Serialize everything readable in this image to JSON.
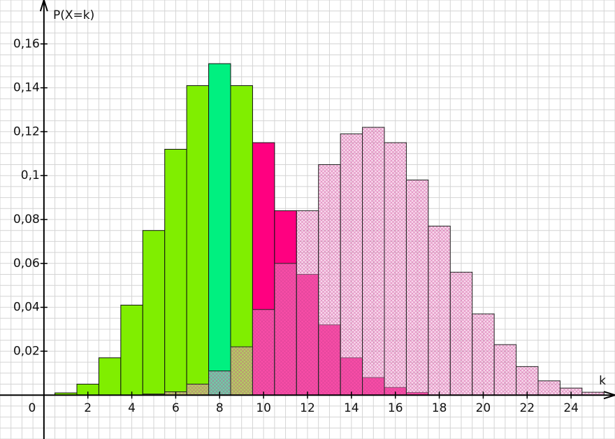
{
  "chart_data": {
    "type": "bar",
    "x_label": "k",
    "y_label": "P(X=k)",
    "xlim": [
      -2,
      26
    ],
    "ylim": [
      -0.02,
      0.18
    ],
    "xticks": [
      0,
      2,
      4,
      6,
      8,
      10,
      12,
      14,
      16,
      18,
      20,
      22,
      24
    ],
    "yticks": [
      {
        "value": 0.02,
        "label": "0,02"
      },
      {
        "value": 0.04,
        "label": "0,04"
      },
      {
        "value": 0.06,
        "label": "0,06"
      },
      {
        "value": 0.08,
        "label": "0,08"
      },
      {
        "value": 0.1,
        "label": "0,1"
      },
      {
        "value": 0.12,
        "label": "0,12"
      },
      {
        "value": 0.14,
        "label": "0,14"
      },
      {
        "value": 0.16,
        "label": "0,16"
      }
    ],
    "grid": true,
    "series": [
      {
        "x": [
          1,
          2,
          3,
          4,
          5,
          6,
          7,
          8,
          9,
          10,
          11,
          12,
          13,
          14,
          15,
          16,
          17
        ],
        "values": [
          0.001,
          0.005,
          0.017,
          0.041,
          0.075,
          0.112,
          0.141,
          0.151,
          0.141,
          0.115,
          0.084,
          0.055,
          0.032,
          0.017,
          0.008,
          0.0035,
          0.0012
        ],
        "colors": [
          "#80ee00",
          "#80ee00",
          "#80ee00",
          "#80ee00",
          "#80ee00",
          "#80ee00",
          "#80ee00",
          "#00f080",
          "#80ee00",
          "#ff0080",
          "#ff0080",
          "#ff0080",
          "#ff0080",
          "#ff0080",
          "#ff0080",
          "#ff0080",
          "#ff0080"
        ]
      },
      {
        "x": [
          5,
          6,
          7,
          8,
          9,
          10,
          11,
          12,
          13,
          14,
          15,
          16,
          17,
          18,
          19,
          20,
          21,
          22,
          23,
          24,
          25
        ],
        "values": [
          0.0005,
          0.0015,
          0.005,
          0.011,
          0.022,
          0.039,
          0.06,
          0.084,
          0.105,
          0.119,
          0.122,
          0.115,
          0.098,
          0.077,
          0.056,
          0.037,
          0.023,
          0.013,
          0.0065,
          0.0032,
          0.0013
        ],
        "color": "#d0509a",
        "hatched": true
      }
    ]
  }
}
